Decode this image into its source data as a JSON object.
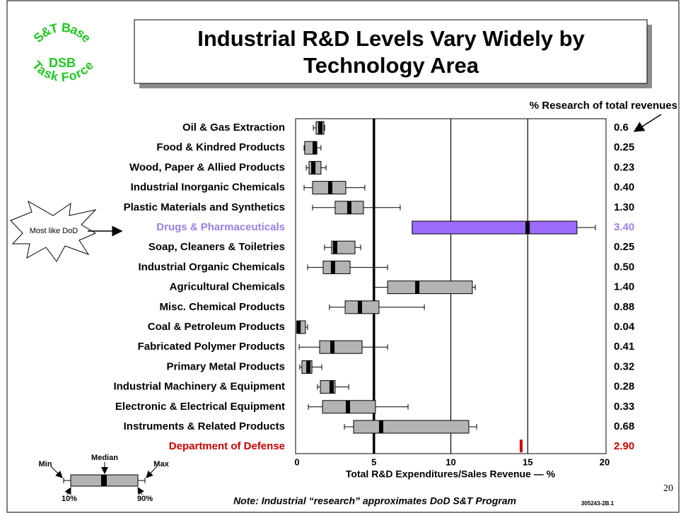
{
  "logo": {
    "top": "S&T Base",
    "middle": "DSB",
    "bottom": "Task Force"
  },
  "callout": "Most like DoD",
  "note": "Note:  Industrial “research” approximates DoD S&T Program",
  "doc_code": "305243-2B.1",
  "page_number": "20",
  "chart_data": {
    "type": "box",
    "title": [
      "Industrial R&D Levels Vary Widely by",
      "Technology Area"
    ],
    "xlabel": "Total R&D Expenditures/Sales Revenue — %",
    "categories": [
      "Oil & Gas Extraction",
      "Food & Kindred Products",
      "Wood, Paper & Allied Products",
      "Industrial Inorganic Chemicals",
      "Plastic Materials and Synthetics",
      "Drugs & Pharmaceuticals",
      "Soap, Cleaners & Toiletries",
      "Industrial Organic Chemicals",
      "Agricultural Chemicals",
      "Misc. Chemical Products",
      "Coal & Petroleum Products",
      "Fabricated Polymer Products",
      "Primary Metal Products",
      "Industrial Machinery & Equipment",
      "Electronic & Electrical Equipment",
      "Instruments & Related Products",
      "Department of Defense"
    ],
    "category_colors": [
      "#000000",
      "#000000",
      "#000000",
      "#000000",
      "#000000",
      "#9b7fe8",
      "#000000",
      "#000000",
      "#000000",
      "#000000",
      "#000000",
      "#000000",
      "#000000",
      "#000000",
      "#000000",
      "#000000",
      "#cc0000"
    ],
    "box_colors": [
      "#b3b3b3",
      "#b3b3b3",
      "#b3b3b3",
      "#b3b3b3",
      "#b3b3b3",
      "#9b6cff",
      "#b3b3b3",
      "#b3b3b3",
      "#b3b3b3",
      "#b3b3b3",
      "#b3b3b3",
      "#b3b3b3",
      "#b3b3b3",
      "#b3b3b3",
      "#b3b3b3",
      "#b3b3b3",
      "#b3b3b3"
    ],
    "series": [
      {
        "name": "Min",
        "values": [
          1.06,
          0.46,
          0.6,
          0.46,
          1.01,
          7.49,
          1.79,
          0.69,
          5.01,
          2.11,
          0,
          0.14,
          0.18,
          1.33,
          0.74,
          3.08,
          null
        ]
      },
      {
        "name": "10%",
        "values": [
          1.24,
          0.5,
          0.78,
          1.01,
          2.48,
          7.49,
          2.25,
          1.7,
          5.89,
          3.13,
          0,
          1.47,
          0.32,
          1.52,
          1.66,
          3.68,
          null
        ]
      },
      {
        "name": "Median",
        "values": [
          1.52,
          1.15,
          1.06,
          2.16,
          3.4,
          14.99,
          2.48,
          2.34,
          7.82,
          4.09,
          0.1,
          2.3,
          0.74,
          2.25,
          3.31,
          5.47,
          null
        ]
      },
      {
        "name": "90%",
        "values": [
          1.75,
          1.29,
          1.56,
          3.17,
          4.32,
          18.2,
          3.77,
          3.45,
          11.4,
          5.33,
          0.55,
          4.23,
          0.97,
          2.48,
          5.1,
          11.17,
          null
        ]
      },
      {
        "name": "Max",
        "values": [
          1.8,
          1.56,
          1.89,
          4.41,
          6.71,
          19.4,
          4.14,
          5.89,
          11.59,
          8.28,
          0.69,
          5.89,
          1.61,
          3.36,
          7.22,
          11.68,
          null
        ]
      }
    ],
    "dod_marker": {
      "value": 14.57,
      "color": "#cc0000"
    },
    "right_header": "% Research of total revenues",
    "research_pct": [
      "0.6",
      "0.25",
      "0.23",
      "0.40",
      "1.30",
      "3.40",
      "0.25",
      "0.50",
      "1.40",
      "0.88",
      "0.04",
      "0.41",
      "0.32",
      "0.28",
      "0.33",
      "0.68",
      "2.90"
    ],
    "xlim": [
      0,
      20
    ],
    "xticks": [
      0,
      5,
      10,
      15,
      20
    ],
    "grid": true
  }
}
